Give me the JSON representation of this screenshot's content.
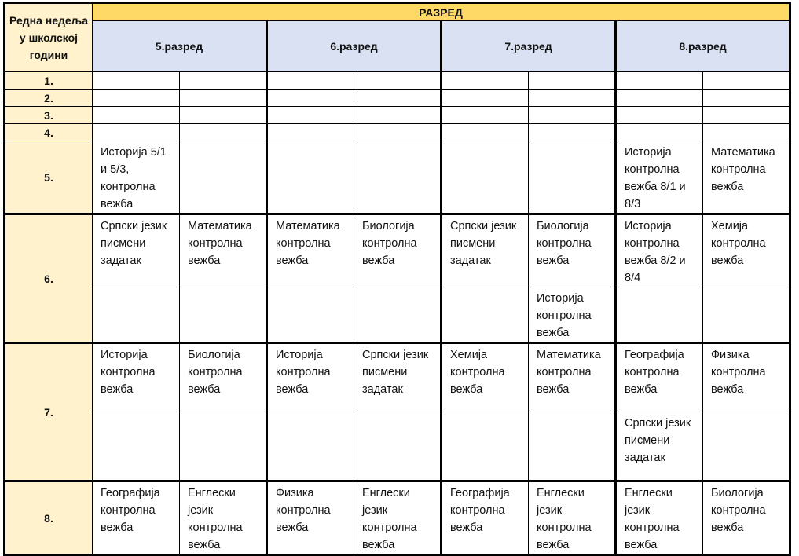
{
  "header": {
    "week_label": "Редна недеља у школској години",
    "grade_group": "РАЗРЕД",
    "grades": [
      "5.разред",
      "6.разред",
      "7.разред",
      "8.разред"
    ]
  },
  "colors": {
    "top_header": "#FFD966",
    "week_column": "#FFF2CC",
    "grade_header": "#D9E1F2"
  },
  "weeks": [
    {
      "label": "1.",
      "rows": [
        [
          "",
          "",
          "",
          "",
          "",
          "",
          "",
          ""
        ]
      ]
    },
    {
      "label": "2.",
      "rows": [
        [
          "",
          "",
          "",
          "",
          "",
          "",
          "",
          ""
        ]
      ]
    },
    {
      "label": "3.",
      "rows": [
        [
          "",
          "",
          "",
          "",
          "",
          "",
          "",
          ""
        ]
      ]
    },
    {
      "label": "4.",
      "rows": [
        [
          "",
          "",
          "",
          "",
          "",
          "",
          "",
          ""
        ]
      ]
    },
    {
      "label": "5.",
      "rows": [
        [
          "Историја 5/1 и 5/3, контролна вежба",
          "",
          "",
          "",
          "",
          "",
          "Историја контролна вежба 8/1 и 8/3",
          "Математика контролна вежба"
        ]
      ]
    },
    {
      "label": "6.",
      "rows": [
        [
          "Српски језик писмени задатак",
          "Математика контролна вежба",
          "Математика контролна вежба",
          "Биологија контролна вежба",
          "Српски језик писмени задатак",
          "Биологија контролна вежба",
          "Историја контролна вежба 8/2 и 8/4",
          "Хемија контролна вежба"
        ],
        [
          "",
          "",
          "",
          "",
          "",
          "Историја контролна вежба",
          "",
          ""
        ]
      ]
    },
    {
      "label": "7.",
      "rows": [
        [
          "Историја контролна вежба",
          "Биологија контролна вежба",
          "Историја контролна вежба",
          "Српски језик писмени задатак",
          "Хемија контролна вежба",
          "Математика контролна вежба",
          "Географија контролна вежба",
          "Физика контролна вежба"
        ],
        [
          "",
          "",
          "",
          "",
          "",
          "",
          "Српски језик писмени задатак",
          ""
        ]
      ]
    },
    {
      "label": "8.",
      "rows": [
        [
          "Географија контролна вежба",
          "Енглески језик контролна вежба",
          "Физика контролна вежба",
          "Енглески језик контролна вежба",
          "Географија контролна вежба",
          "Енглески језик контролна вежба",
          "Енглески језик контролна вежба",
          "Биологија контролна вежба"
        ]
      ]
    }
  ]
}
